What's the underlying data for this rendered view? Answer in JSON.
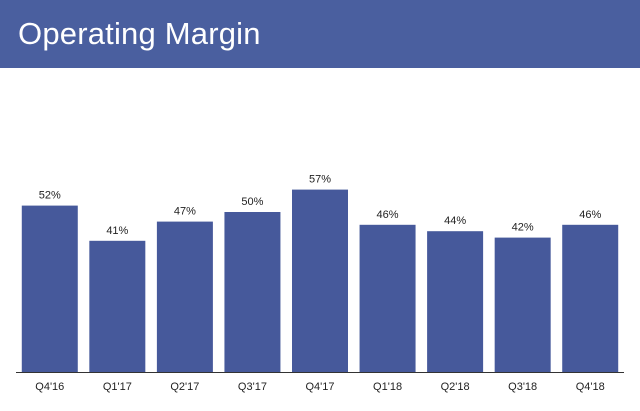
{
  "header": {
    "title": "Operating Margin"
  },
  "colors": {
    "header_background": "#4a5f9f",
    "bar": "#46599b",
    "axis": "#333333"
  },
  "chart_data": {
    "type": "bar",
    "title": "Operating Margin",
    "categories": [
      "Q4'16",
      "Q1'17",
      "Q2'17",
      "Q3'17",
      "Q4'17",
      "Q1'18",
      "Q2'18",
      "Q3'18",
      "Q4'18"
    ],
    "values": [
      52,
      41,
      47,
      50,
      57,
      46,
      44,
      42,
      46
    ],
    "value_labels": [
      "52%",
      "41%",
      "47%",
      "50%",
      "57%",
      "46%",
      "44%",
      "42%",
      "46%"
    ],
    "unit": "%",
    "ylim": [
      0,
      100
    ],
    "grid": false,
    "legend": "none"
  }
}
